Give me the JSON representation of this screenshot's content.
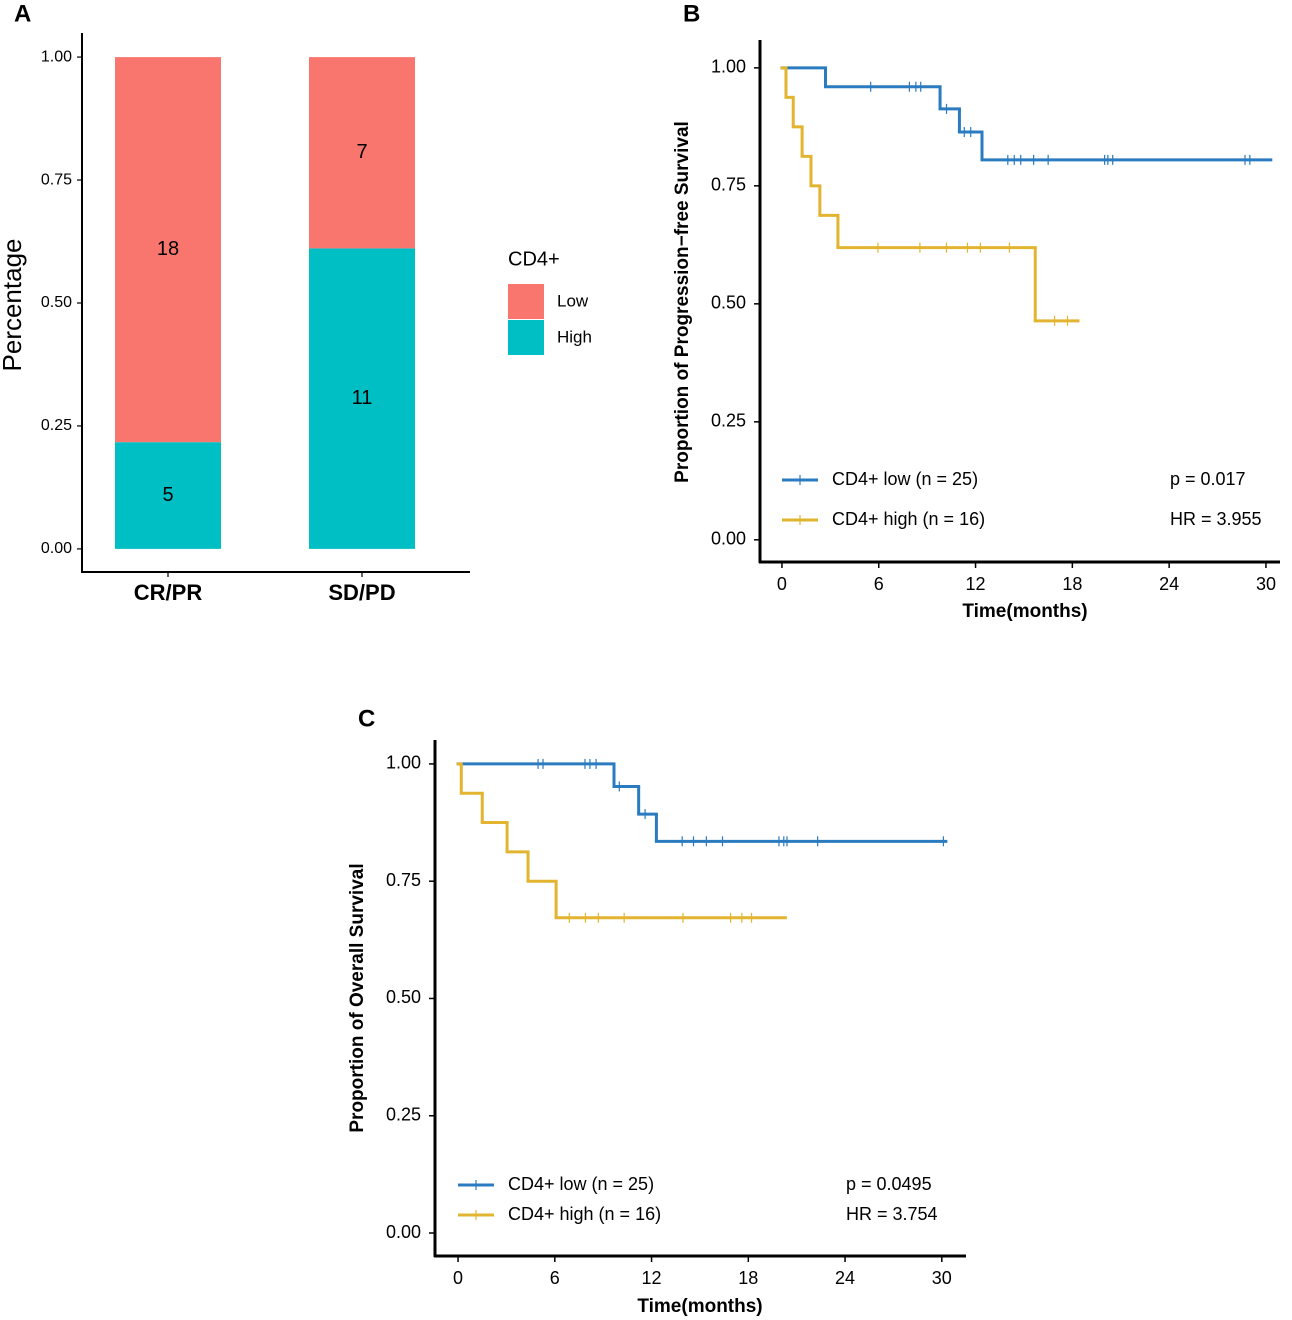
{
  "chart_data": [
    {
      "type": "stacked_bar",
      "panel": "A",
      "ylabel": "Percentage",
      "categories": [
        "CR/PR",
        "SD/PD"
      ],
      "legend_title": "CD4+",
      "series": [
        {
          "name": "Low",
          "color": "#F8766D",
          "values": [
            0.783,
            0.389
          ],
          "counts": [
            18,
            7
          ]
        },
        {
          "name": "High",
          "color": "#00BFC4",
          "values": [
            0.217,
            0.611
          ],
          "counts": [
            5,
            11
          ]
        }
      ],
      "ylim": [
        -0.047,
        1.049
      ],
      "yticks": [
        {
          "value": 0,
          "label": "0.00"
        },
        {
          "value": 0.25,
          "label": "0.25"
        },
        {
          "value": 0.5,
          "label": "0.50"
        },
        {
          "value": 0.75,
          "label": "0.75"
        },
        {
          "value": 1,
          "label": "1.00"
        }
      ]
    },
    {
      "type": "km",
      "panel": "B",
      "ylabel": "Proportion of Progression−free Survival",
      "xlabel": "Time(months)",
      "xlim": [
        -1.36,
        30.87
      ],
      "xticks": [
        0,
        6,
        12,
        18,
        24,
        30
      ],
      "ylim": [
        -0.047,
        1.059
      ],
      "yticks": [
        {
          "value": 0,
          "label": "0.00"
        },
        {
          "value": 0.25,
          "label": "0.25"
        },
        {
          "value": 0.5,
          "label": "0.50"
        },
        {
          "value": 0.75,
          "label": "0.75"
        },
        {
          "value": 1,
          "label": "1.00"
        }
      ],
      "series": [
        {
          "name": "CD4+ low (n = 25)",
          "color": "#2A7BBF",
          "x": [
            0,
            2.7,
            9.8,
            11.0,
            12.4,
            30.3
          ],
          "y": [
            1,
            0.96,
            0.913,
            0.864,
            0.805,
            0.805
          ],
          "censor_x": [
            5.5,
            7.9,
            8.3,
            8.6,
            10.2,
            11.3,
            11.7,
            14.0,
            14.4,
            14.8,
            15.6,
            16.5,
            20.0,
            20.2,
            20.5,
            28.7,
            29.0
          ],
          "censor_y": [
            0.96,
            0.96,
            0.96,
            0.96,
            0.913,
            0.864,
            0.864,
            0.805,
            0.805,
            0.805,
            0.805,
            0.805,
            0.805,
            0.805,
            0.805,
            0.805,
            0.805
          ]
        },
        {
          "name": "CD4+ high (n = 16)",
          "color": "#E2B430",
          "x": [
            0,
            0.25,
            0.7,
            1.25,
            1.8,
            2.35,
            3.47,
            15.7,
            18.35
          ],
          "y": [
            1,
            0.9375,
            0.875,
            0.8125,
            0.75,
            0.6875,
            0.619,
            0.464,
            0.464
          ],
          "censor_x": [
            5.95,
            8.55,
            10.2,
            11.5,
            12.3,
            14.1,
            16.9,
            17.7
          ],
          "censor_y": [
            0.619,
            0.619,
            0.619,
            0.619,
            0.619,
            0.619,
            0.464,
            0.464
          ]
        }
      ],
      "annotations": [
        "p = 0.017",
        "HR = 3.955"
      ]
    },
    {
      "type": "km",
      "panel": "C",
      "ylabel": "Proportion of Overall Survival",
      "xlabel": "Time(months)",
      "xlim": [
        -1.43,
        31.5
      ],
      "xticks": [
        0,
        6,
        12,
        18,
        24,
        30
      ],
      "ylim": [
        -0.049,
        1.051
      ],
      "yticks": [
        {
          "value": 0,
          "label": "0.00"
        },
        {
          "value": 0.25,
          "label": "0.25"
        },
        {
          "value": 0.5,
          "label": "0.50"
        },
        {
          "value": 0.75,
          "label": "0.75"
        },
        {
          "value": 1,
          "label": "1.00"
        }
      ],
      "series": [
        {
          "name": "CD4+ low (n = 25)",
          "color": "#2A7BBF",
          "x": [
            0,
            9.67,
            11.2,
            12.3,
            30.25
          ],
          "y": [
            1,
            0.952,
            0.893,
            0.835,
            0.835
          ],
          "censor_x": [
            4.96,
            5.27,
            7.87,
            8.18,
            8.56,
            10.0,
            11.6,
            13.9,
            14.6,
            15.4,
            16.4,
            19.9,
            20.2,
            20.4,
            22.3,
            30.1
          ],
          "censor_y": [
            1,
            1,
            1,
            1,
            1,
            0.952,
            0.893,
            0.835,
            0.835,
            0.835,
            0.835,
            0.835,
            0.835,
            0.835,
            0.835,
            0.835
          ]
        },
        {
          "name": "CD4+ high (n = 16)",
          "color": "#E2B430",
          "x": [
            0,
            0.2,
            1.5,
            3.04,
            4.34,
            6.08,
            20.3
          ],
          "y": [
            1,
            0.9375,
            0.875,
            0.8125,
            0.75,
            0.672,
            0.672
          ],
          "censor_x": [
            6.9,
            7.9,
            8.7,
            10.3,
            13.95,
            16.9,
            17.6,
            18.2
          ],
          "censor_y": [
            0.672,
            0.672,
            0.672,
            0.672,
            0.672,
            0.672,
            0.672,
            0.672
          ]
        }
      ],
      "annotations": [
        "p = 0.0495",
        "HR = 3.754"
      ]
    }
  ]
}
